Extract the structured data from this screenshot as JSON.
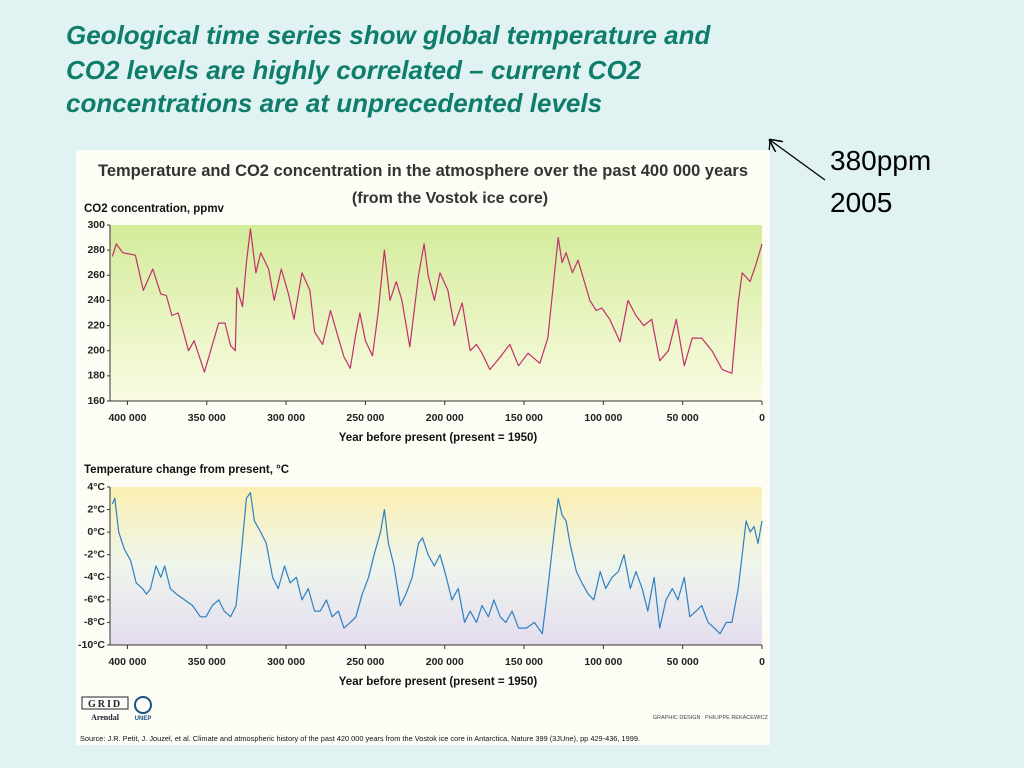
{
  "slide": {
    "title": [
      "Geological time series show global temperature and",
      "CO2 levels are highly correlated – current CO2",
      "concentrations are at unprecedented levels"
    ],
    "annotation": [
      "380ppm",
      "2005"
    ]
  },
  "figure": {
    "title": "Temperature and CO2 concentration in the atmosphere over the past 400 000 years",
    "subtitle": "(from the Vostok ice core)",
    "credit": "GRAPHIC DESIGN : PHILIPPE REKACEWICZ",
    "logos": [
      "GRID",
      "Arendal",
      "UNEP"
    ],
    "source": "Source: J.R. Petit, J. Jouzel, et al. Climate and atmospheric history of the past 420 000 years from the Vostok ice core in Antarctica, Nature 399 (3JUne), pp 429-436, 1999."
  },
  "chart_data": [
    {
      "type": "line",
      "ylabel": "CO2 concentration, ppmv",
      "xlabel": "Year before present (present = 1950)",
      "color": "#c2306c",
      "xlim": [
        411000,
        0
      ],
      "xticks": [
        {
          "value": 400000,
          "label": "400 000"
        },
        {
          "value": 350000,
          "label": "350 000"
        },
        {
          "value": 300000,
          "label": "300 000"
        },
        {
          "value": 250000,
          "label": "250 000"
        },
        {
          "value": 200000,
          "label": "200 000"
        },
        {
          "value": 150000,
          "label": "150 000"
        },
        {
          "value": 100000,
          "label": "100 000"
        },
        {
          "value": 50000,
          "label": "50 000"
        },
        0
      ],
      "ylim": [
        160,
        300
      ],
      "yticks": [
        160,
        180,
        200,
        220,
        240,
        260,
        280,
        300
      ],
      "grid": false,
      "x": [
        409500,
        407000,
        403000,
        395000,
        390000,
        384000,
        379000,
        375500,
        372000,
        368000,
        361500,
        358000,
        351500,
        342500,
        338500,
        335000,
        332000,
        331000,
        327500,
        325000,
        322500,
        319000,
        316000,
        311000,
        307500,
        303000,
        298500,
        295000,
        290000,
        285000,
        282000,
        277000,
        272000,
        267000,
        263500,
        259500,
        256500,
        253500,
        250000,
        245500,
        242000,
        238000,
        234500,
        230500,
        227000,
        222000,
        216500,
        213000,
        210500,
        206500,
        203000,
        198000,
        194000,
        189000,
        184000,
        180000,
        176500,
        171500,
        165000,
        159000,
        153500,
        147500,
        140000,
        135000,
        128500,
        126000,
        123500,
        119500,
        116000,
        112000,
        108500,
        104500,
        101000,
        96000,
        89500,
        84500,
        79500,
        74500,
        69500,
        64500,
        59000,
        54000,
        49000,
        44000,
        38000,
        31500,
        25000,
        19000,
        15000,
        12500,
        7500,
        4000,
        0
      ],
      "values": [
        275,
        285,
        278,
        276,
        248,
        265,
        245,
        244,
        228,
        230,
        200,
        208,
        183,
        222,
        222,
        204,
        200,
        250,
        235,
        270,
        297,
        262,
        278,
        265,
        240,
        265,
        245,
        225,
        262,
        248,
        215,
        205,
        232,
        210,
        195,
        186,
        210,
        230,
        208,
        196,
        230,
        280,
        240,
        255,
        240,
        203,
        260,
        285,
        260,
        240,
        262,
        248,
        220,
        238,
        200,
        205,
        198,
        185,
        195,
        205,
        188,
        198,
        190,
        210,
        290,
        270,
        278,
        262,
        272,
        255,
        240,
        232,
        234,
        225,
        207,
        240,
        228,
        220,
        225,
        192,
        200,
        225,
        188,
        210,
        210,
        200,
        185,
        182,
        238,
        262,
        255,
        268,
        285
      ]
    },
    {
      "type": "line",
      "ylabel": "Temperature change from present, °C",
      "xlabel": "Year before present (present = 1950)",
      "color": "#2f80c0",
      "xlim": [
        411000,
        0
      ],
      "xticks": [
        {
          "value": 400000,
          "label": "400 000"
        },
        {
          "value": 350000,
          "label": "350 000"
        },
        {
          "value": 300000,
          "label": "300 000"
        },
        {
          "value": 250000,
          "label": "250 000"
        },
        {
          "value": 200000,
          "label": "200 000"
        },
        {
          "value": 150000,
          "label": "150 000"
        },
        {
          "value": 100000,
          "label": "100 000"
        },
        {
          "value": 50000,
          "label": "50 000"
        },
        0
      ],
      "ylim": [
        -10,
        4
      ],
      "yticks": [
        {
          "value": -10,
          "label": "-10°C"
        },
        {
          "value": -8,
          "label": "-8°C"
        },
        {
          "value": -6,
          "label": "-6°C"
        },
        {
          "value": -4,
          "label": "-4°C"
        },
        {
          "value": -2,
          "label": "-2°C"
        },
        {
          "value": 0,
          "label": "0°C"
        },
        {
          "value": 2,
          "label": "2°C"
        },
        {
          "value": 4,
          "label": "4°C"
        }
      ],
      "grid": false,
      "x": [
        409500,
        408000,
        405500,
        402000,
        398000,
        394500,
        390500,
        388000,
        385500,
        382000,
        379000,
        376500,
        373000,
        369000,
        364000,
        359000,
        354000,
        350500,
        346500,
        342500,
        339000,
        335000,
        331500,
        329000,
        325000,
        322500,
        320000,
        316000,
        312500,
        308500,
        305000,
        301000,
        297500,
        293500,
        290000,
        286000,
        282000,
        278500,
        274500,
        271000,
        267000,
        263500,
        259500,
        256000,
        252000,
        248000,
        244500,
        240500,
        238000,
        235500,
        232000,
        228000,
        224500,
        220500,
        216500,
        214000,
        210500,
        206500,
        203000,
        199000,
        195500,
        191500,
        187500,
        184000,
        180000,
        176500,
        172500,
        169000,
        165000,
        161500,
        157500,
        153500,
        148500,
        143500,
        138500,
        135000,
        131000,
        128500,
        126000,
        123500,
        121000,
        117000,
        113500,
        109500,
        106000,
        102000,
        98500,
        94500,
        90500,
        87000,
        83000,
        79500,
        75500,
        72000,
        68000,
        64500,
        60500,
        56500,
        53000,
        49000,
        45500,
        41500,
        38000,
        34000,
        30000,
        26500,
        22500,
        19000,
        15000,
        12500,
        10000,
        7500,
        5000,
        2500,
        0
      ],
      "values": [
        2.5,
        3,
        0,
        -1.5,
        -2.5,
        -4.5,
        -5,
        -5.5,
        -5,
        -3,
        -4,
        -3,
        -5,
        -5.5,
        -6,
        -6.5,
        -7.5,
        -7.5,
        -6.5,
        -6,
        -7,
        -7.5,
        -6.5,
        -3,
        3,
        3.5,
        1,
        0,
        -1,
        -4,
        -5,
        -3,
        -4.5,
        -4,
        -6,
        -5,
        -7,
        -7,
        -6,
        -7.5,
        -7,
        -8.5,
        -8,
        -7.5,
        -5.5,
        -4,
        -2,
        0,
        2,
        -1,
        -3,
        -6.5,
        -5.5,
        -4,
        -1,
        -0.5,
        -2,
        -3,
        -2,
        -4,
        -6,
        -5,
        -8,
        -7,
        -8,
        -6.5,
        -7.5,
        -6,
        -7.5,
        -8,
        -7,
        -8.5,
        -8.5,
        -8,
        -9,
        -5,
        0,
        3,
        1.5,
        1,
        -1,
        -3.5,
        -4.5,
        -5.5,
        -6,
        -3.5,
        -5,
        -4,
        -3.5,
        -2,
        -5,
        -3.5,
        -5,
        -7,
        -4,
        -8.5,
        -6,
        -5,
        -6,
        -4,
        -7.5,
        -7,
        -6.5,
        -8,
        -8.5,
        -9,
        -8,
        -8,
        -5,
        -2,
        1,
        0,
        0.5,
        -1,
        1
      ]
    }
  ]
}
